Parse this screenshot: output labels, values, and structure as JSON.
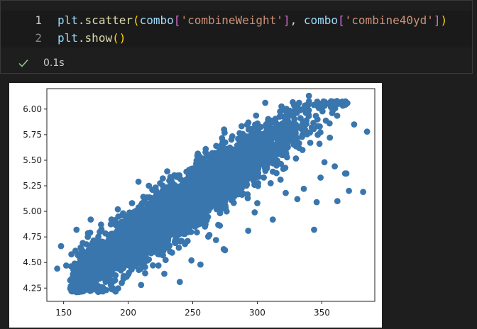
{
  "notebook": {
    "cell": {
      "lines": [
        {
          "number": "1",
          "tokens": [
            {
              "text": "plt",
              "cls": "t-var"
            },
            {
              "text": ".",
              "cls": "t-punc"
            },
            {
              "text": "scatter",
              "cls": "t-fn"
            },
            {
              "text": "(",
              "cls": "t-paren1"
            },
            {
              "text": "combo",
              "cls": "t-var"
            },
            {
              "text": "[",
              "cls": "t-paren2"
            },
            {
              "text": "'combineWeight'",
              "cls": "t-str"
            },
            {
              "text": "]",
              "cls": "t-paren2"
            },
            {
              "text": ", ",
              "cls": "t-punc"
            },
            {
              "text": "combo",
              "cls": "t-var"
            },
            {
              "text": "[",
              "cls": "t-paren2"
            },
            {
              "text": "'combine40yd'",
              "cls": "t-str"
            },
            {
              "text": "]",
              "cls": "t-paren2"
            },
            {
              "text": ")",
              "cls": "t-paren1"
            }
          ]
        },
        {
          "number": "2",
          "tokens": [
            {
              "text": "plt",
              "cls": "t-var"
            },
            {
              "text": ".",
              "cls": "t-punc"
            },
            {
              "text": "show",
              "cls": "t-fn"
            },
            {
              "text": "()",
              "cls": "t-paren1"
            }
          ]
        }
      ],
      "status": {
        "icon": "check-icon",
        "execution_time": "0.1s",
        "color": "#89d185"
      }
    }
  },
  "chart_data": {
    "type": "scatter",
    "title": "",
    "xlabel": "",
    "ylabel": "",
    "xlim": [
      137,
      391
    ],
    "ylim": [
      4.12,
      6.2
    ],
    "x_ticks": [
      150,
      200,
      250,
      300,
      350
    ],
    "x_tick_labels": [
      "150",
      "200",
      "250",
      "300",
      "350"
    ],
    "y_ticks": [
      4.25,
      4.5,
      4.75,
      5.0,
      5.25,
      5.5,
      5.75,
      6.0
    ],
    "y_tick_labels": [
      "4.25",
      "4.50",
      "4.75",
      "5.00",
      "5.25",
      "5.50",
      "5.75",
      "6.00"
    ],
    "grid": false,
    "marker_color": "#3a76ae",
    "point_count": 4200,
    "points": {
      "x": [
        145,
        148,
        152,
        156,
        160,
        165,
        171,
        175,
        179,
        183,
        187,
        192,
        195,
        198,
        203,
        207,
        210,
        214,
        220,
        224,
        228,
        233,
        239,
        244,
        249,
        256,
        262,
        268,
        274,
        281,
        287,
        293,
        300,
        306,
        312,
        318,
        324,
        331,
        336,
        341,
        346,
        352,
        360,
        368,
        375,
        382,
        385,
        172,
        188,
        202,
        215,
        229,
        246,
        258,
        271,
        286,
        298,
        309,
        322,
        335,
        349,
        362,
        371,
        310,
        330,
        317,
        340,
        303,
        350,
        322,
        356,
        327,
        216,
        208,
        240,
        256,
        275,
        344,
        369,
        160
      ],
      "y": [
        4.44,
        4.66,
        4.47,
        4.58,
        4.82,
        4.61,
        4.92,
        4.38,
        4.87,
        4.23,
        4.78,
        5.02,
        4.3,
        4.55,
        5.08,
        4.63,
        4.28,
        4.71,
        5.13,
        4.58,
        4.39,
        4.83,
        5.24,
        4.68,
        4.52,
        5.03,
        5.27,
        4.72,
        4.63,
        5.19,
        5.37,
        4.81,
        5.08,
        5.45,
        4.92,
        5.31,
        5.73,
        5.12,
        5.22,
        5.67,
        5.09,
        5.48,
        5.44,
        5.37,
        5.85,
        5.19,
        5.78,
        4.57,
        4.25,
        4.84,
        4.52,
        5.02,
        4.71,
        5.11,
        4.86,
        5.33,
        4.99,
        5.48,
        5.18,
        5.6,
        5.33,
        5.1,
        5.2,
        5.8,
        5.97,
        5.67,
        6.13,
        5.73,
        6.02,
        5.98,
        5.86,
        5.76,
        5.25,
        5.29,
        4.31,
        4.48,
        4.62,
        4.82,
        5.37,
        4.21
      ]
    },
    "cloud": {
      "slope": 0.0087,
      "intercept": 2.95,
      "x_mean": 245,
      "x_sd": 44,
      "x_min": 155,
      "x_max": 370,
      "y_noise_sd": 0.14
    }
  }
}
